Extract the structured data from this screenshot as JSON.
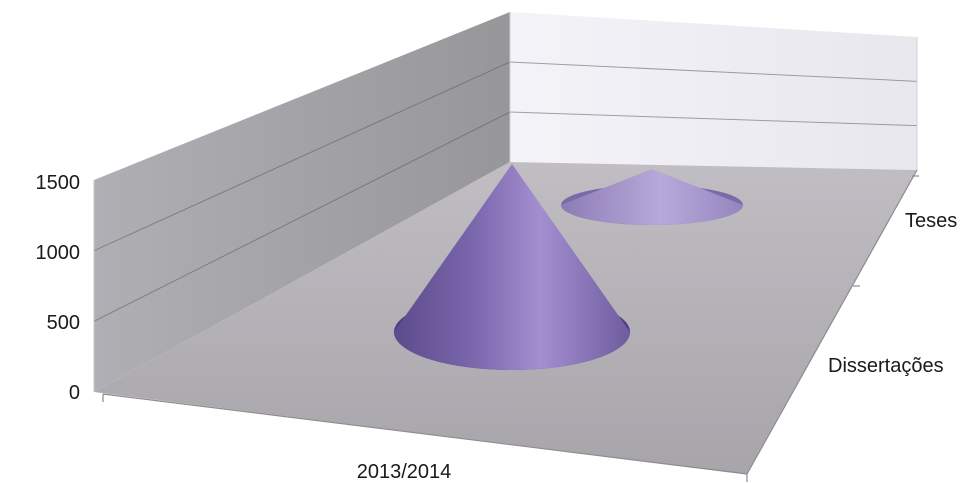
{
  "chart_data": {
    "type": "cone3d",
    "categories": [
      "2013/2014"
    ],
    "series": [
      {
        "name": "Dissertações",
        "values": [
          1500
        ]
      },
      {
        "name": "Teses",
        "values": [
          300
        ]
      }
    ],
    "ytick_labels": [
      "0",
      "500",
      "1000",
      "1500"
    ],
    "yticks": [
      0,
      500,
      1000,
      1500
    ],
    "ylim": [
      0,
      1500
    ],
    "grid": true,
    "legend": "none",
    "colors": {
      "series": "#8a76b8",
      "floor": "#aeacb1",
      "back_wall": "#ebeaf0",
      "side_wall": "#a5a4a9",
      "gridline": "#5a5a5e",
      "axis_line": "#8c8c8c"
    }
  }
}
